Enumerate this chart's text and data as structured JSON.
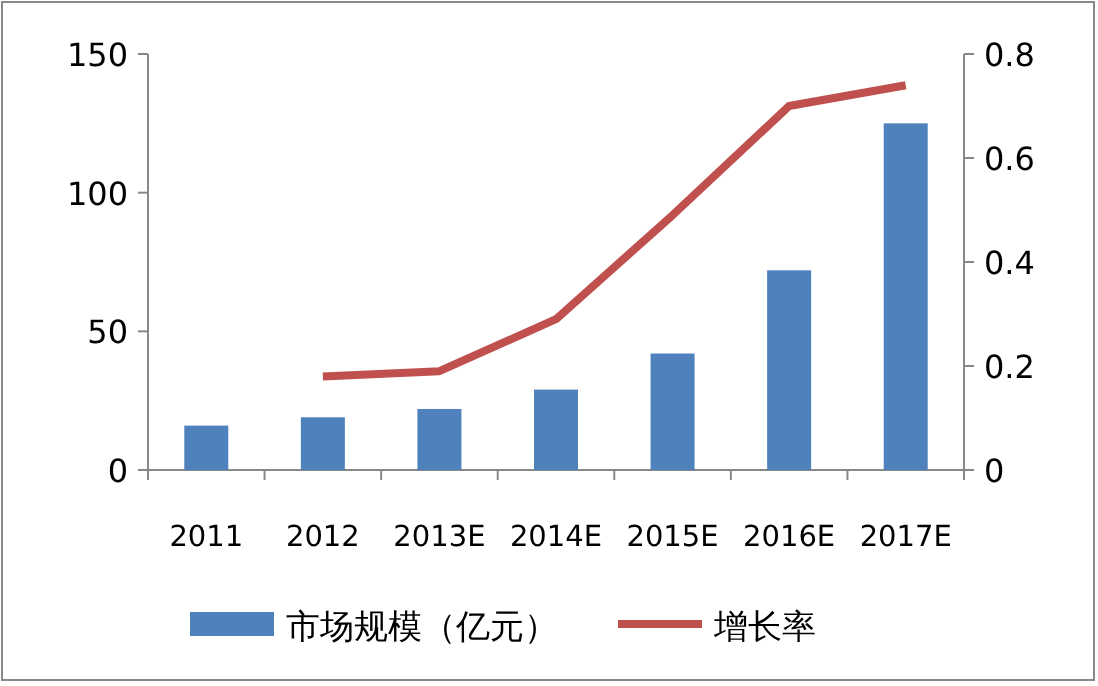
{
  "chart_data": {
    "type": "bar",
    "categories": [
      "2011",
      "2012",
      "2013E",
      "2014E",
      "2015E",
      "2016E",
      "2017E"
    ],
    "series": [
      {
        "name": "市场规模（亿元）",
        "color": "#4f81bd",
        "values": [
          16,
          19,
          22,
          29,
          42,
          72,
          125
        ]
      },
      {
        "name": "增长率",
        "type": "line",
        "axis": "y2",
        "color": "#c0504d",
        "values": [
          null,
          0.18,
          0.19,
          0.29,
          0.49,
          0.7,
          0.74
        ]
      }
    ],
    "ylim": [
      0,
      150
    ],
    "yticks": [
      0,
      50,
      100,
      150
    ],
    "y2lim": [
      0,
      0.8
    ],
    "y2ticks": [
      0,
      0.2,
      0.4,
      0.6,
      0.8
    ],
    "legend": "bottom",
    "grid": false
  }
}
